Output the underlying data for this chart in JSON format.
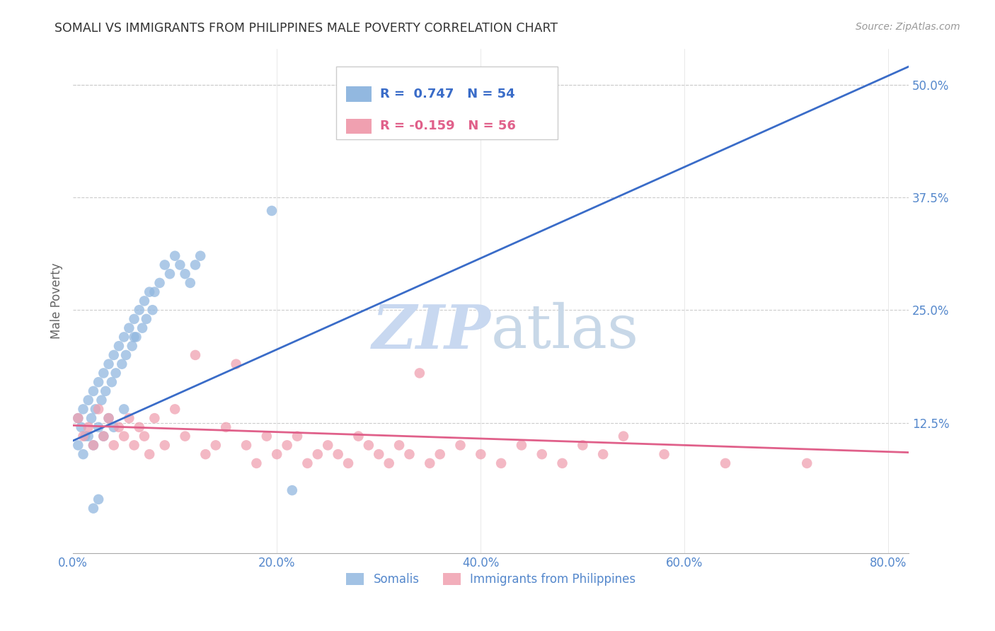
{
  "title": "SOMALI VS IMMIGRANTS FROM PHILIPPINES MALE POVERTY CORRELATION CHART",
  "source": "Source: ZipAtlas.com",
  "xlabel_vals": [
    0.0,
    0.2,
    0.4,
    0.6,
    0.8
  ],
  "ylabel_vals": [
    0.125,
    0.25,
    0.375,
    0.5
  ],
  "xlim": [
    0.0,
    0.82
  ],
  "ylim": [
    -0.02,
    0.54
  ],
  "ylabel": "Male Poverty",
  "legend_somali_R": "0.747",
  "legend_somali_N": "54",
  "legend_phil_R": "-0.159",
  "legend_phil_N": "56",
  "somali_color": "#92b8e0",
  "phil_color": "#f0a0b0",
  "trend_somali_color": "#3a6cc8",
  "trend_phil_color": "#e0608a",
  "watermark_zip": "ZIP",
  "watermark_atlas": "atlas",
  "watermark_color_zip": "#c8d8f0",
  "watermark_color_atlas": "#c8d8e8",
  "background_color": "#ffffff",
  "grid_color": "#cccccc",
  "tick_label_color": "#5588cc",
  "title_color": "#333333",
  "somali_scatter_x": [
    0.005,
    0.008,
    0.01,
    0.012,
    0.015,
    0.018,
    0.02,
    0.022,
    0.025,
    0.028,
    0.03,
    0.032,
    0.035,
    0.038,
    0.04,
    0.042,
    0.045,
    0.048,
    0.05,
    0.052,
    0.055,
    0.058,
    0.06,
    0.062,
    0.065,
    0.068,
    0.07,
    0.072,
    0.075,
    0.078,
    0.08,
    0.085,
    0.09,
    0.095,
    0.1,
    0.105,
    0.11,
    0.115,
    0.12,
    0.125,
    0.005,
    0.01,
    0.015,
    0.02,
    0.025,
    0.03,
    0.035,
    0.04,
    0.05,
    0.06,
    0.02,
    0.025,
    0.195,
    0.215
  ],
  "somali_scatter_y": [
    0.13,
    0.12,
    0.14,
    0.11,
    0.15,
    0.13,
    0.16,
    0.14,
    0.17,
    0.15,
    0.18,
    0.16,
    0.19,
    0.17,
    0.2,
    0.18,
    0.21,
    0.19,
    0.22,
    0.2,
    0.23,
    0.21,
    0.24,
    0.22,
    0.25,
    0.23,
    0.26,
    0.24,
    0.27,
    0.25,
    0.27,
    0.28,
    0.3,
    0.29,
    0.31,
    0.3,
    0.29,
    0.28,
    0.3,
    0.31,
    0.1,
    0.09,
    0.11,
    0.1,
    0.12,
    0.11,
    0.13,
    0.12,
    0.14,
    0.22,
    0.03,
    0.04,
    0.36,
    0.05
  ],
  "phil_scatter_x": [
    0.005,
    0.01,
    0.015,
    0.02,
    0.025,
    0.03,
    0.035,
    0.04,
    0.045,
    0.05,
    0.055,
    0.06,
    0.065,
    0.07,
    0.075,
    0.08,
    0.09,
    0.1,
    0.11,
    0.12,
    0.13,
    0.14,
    0.15,
    0.16,
    0.17,
    0.18,
    0.19,
    0.2,
    0.21,
    0.22,
    0.23,
    0.24,
    0.25,
    0.26,
    0.27,
    0.28,
    0.29,
    0.3,
    0.31,
    0.32,
    0.33,
    0.34,
    0.35,
    0.36,
    0.38,
    0.4,
    0.42,
    0.44,
    0.46,
    0.48,
    0.5,
    0.52,
    0.54,
    0.58,
    0.64,
    0.72
  ],
  "phil_scatter_y": [
    0.13,
    0.11,
    0.12,
    0.1,
    0.14,
    0.11,
    0.13,
    0.1,
    0.12,
    0.11,
    0.13,
    0.1,
    0.12,
    0.11,
    0.09,
    0.13,
    0.1,
    0.14,
    0.11,
    0.2,
    0.09,
    0.1,
    0.12,
    0.19,
    0.1,
    0.08,
    0.11,
    0.09,
    0.1,
    0.11,
    0.08,
    0.09,
    0.1,
    0.09,
    0.08,
    0.11,
    0.1,
    0.09,
    0.08,
    0.1,
    0.09,
    0.18,
    0.08,
    0.09,
    0.1,
    0.09,
    0.08,
    0.1,
    0.09,
    0.08,
    0.1,
    0.09,
    0.11,
    0.09,
    0.08,
    0.08
  ],
  "somali_trend_x0": 0.0,
  "somali_trend_x1": 0.82,
  "somali_trend_y0": 0.105,
  "somali_trend_y1": 0.52,
  "phil_trend_x0": 0.0,
  "phil_trend_x1": 0.82,
  "phil_trend_y0": 0.122,
  "phil_trend_y1": 0.092
}
